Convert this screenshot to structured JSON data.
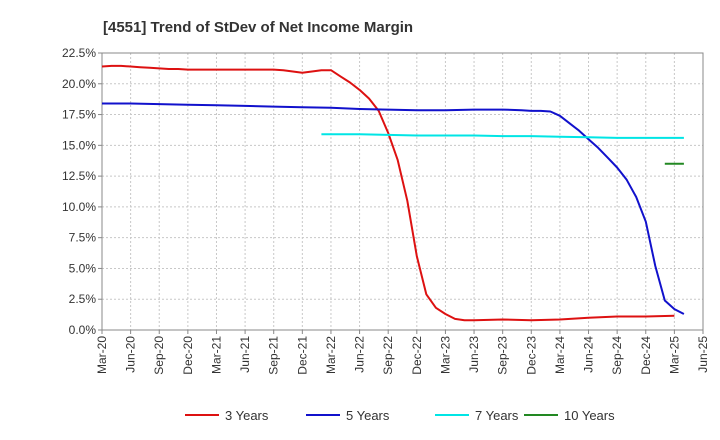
{
  "chart_data": {
    "type": "line",
    "title": "[4551]  Trend of StDev of Net Income Margin",
    "xlabel": "",
    "ylabel": "",
    "ylim": [
      0,
      22.5
    ],
    "yticks": [
      "0.0%",
      "2.5%",
      "5.0%",
      "7.5%",
      "10.0%",
      "12.5%",
      "15.0%",
      "17.5%",
      "20.0%",
      "22.5%"
    ],
    "ytick_values": [
      0,
      2.5,
      5,
      7.5,
      10,
      12.5,
      15,
      17.5,
      20,
      22.5
    ],
    "xticks": [
      "Mar-20",
      "Jun-20",
      "Sep-20",
      "Dec-20",
      "Mar-21",
      "Jun-21",
      "Sep-21",
      "Dec-21",
      "Mar-22",
      "Jun-22",
      "Sep-22",
      "Dec-22",
      "Mar-23",
      "Jun-23",
      "Sep-23",
      "Dec-23",
      "Mar-24",
      "Jun-24",
      "Sep-24",
      "Dec-24",
      "Mar-25",
      "Jun-25"
    ],
    "grid": true,
    "legend_position": "bottom",
    "series": [
      {
        "name": "3 Years",
        "color": "#dd1111",
        "points": [
          [
            "Mar-20",
            21.4
          ],
          [
            "Apr-20",
            21.45
          ],
          [
            "May-20",
            21.45
          ],
          [
            "Jun-20",
            21.4
          ],
          [
            "Jul-20",
            21.35
          ],
          [
            "Aug-20",
            21.3
          ],
          [
            "Sep-20",
            21.25
          ],
          [
            "Oct-20",
            21.2
          ],
          [
            "Nov-20",
            21.2
          ],
          [
            "Dec-20",
            21.15
          ],
          [
            "Mar-21",
            21.15
          ],
          [
            "Jun-21",
            21.15
          ],
          [
            "Sep-21",
            21.15
          ],
          [
            "Oct-21",
            21.1
          ],
          [
            "Nov-21",
            21.0
          ],
          [
            "Dec-21",
            20.9
          ],
          [
            "Jan-22",
            21.0
          ],
          [
            "Feb-22",
            21.1
          ],
          [
            "Mar-22",
            21.1
          ],
          [
            "Apr-22",
            20.6
          ],
          [
            "May-22",
            20.1
          ],
          [
            "Jun-22",
            19.5
          ],
          [
            "Jul-22",
            18.8
          ],
          [
            "Aug-22",
            17.8
          ],
          [
            "Sep-22",
            16.0
          ],
          [
            "Oct-22",
            13.8
          ],
          [
            "Nov-22",
            10.5
          ],
          [
            "Dec-22",
            6.0
          ],
          [
            "Jan-23",
            2.9
          ],
          [
            "Feb-23",
            1.8
          ],
          [
            "Mar-23",
            1.3
          ],
          [
            "Apr-23",
            0.9
          ],
          [
            "May-23",
            0.8
          ],
          [
            "Jun-23",
            0.8
          ],
          [
            "Sep-23",
            0.85
          ],
          [
            "Dec-23",
            0.8
          ],
          [
            "Mar-24",
            0.85
          ],
          [
            "Jun-24",
            1.0
          ],
          [
            "Sep-24",
            1.1
          ],
          [
            "Dec-24",
            1.1
          ],
          [
            "Mar-25",
            1.15
          ]
        ]
      },
      {
        "name": "5 Years",
        "color": "#1111cc",
        "points": [
          [
            "Mar-20",
            18.4
          ],
          [
            "Jun-20",
            18.4
          ],
          [
            "Sep-20",
            18.35
          ],
          [
            "Dec-20",
            18.3
          ],
          [
            "Mar-21",
            18.25
          ],
          [
            "Jun-21",
            18.2
          ],
          [
            "Sep-21",
            18.15
          ],
          [
            "Dec-21",
            18.1
          ],
          [
            "Mar-22",
            18.05
          ],
          [
            "Jun-22",
            17.95
          ],
          [
            "Sep-22",
            17.9
          ],
          [
            "Dec-22",
            17.85
          ],
          [
            "Mar-23",
            17.85
          ],
          [
            "Jun-23",
            17.9
          ],
          [
            "Sep-23",
            17.9
          ],
          [
            "Nov-23",
            17.85
          ],
          [
            "Dec-23",
            17.8
          ],
          [
            "Jan-24",
            17.8
          ],
          [
            "Feb-24",
            17.75
          ],
          [
            "Mar-24",
            17.4
          ],
          [
            "Apr-24",
            16.8
          ],
          [
            "May-24",
            16.2
          ],
          [
            "Jun-24",
            15.5
          ],
          [
            "Jul-24",
            14.8
          ],
          [
            "Aug-24",
            14.0
          ],
          [
            "Sep-24",
            13.2
          ],
          [
            "Oct-24",
            12.2
          ],
          [
            "Nov-24",
            10.8
          ],
          [
            "Dec-24",
            8.8
          ],
          [
            "Jan-25",
            5.2
          ],
          [
            "Feb-25",
            2.4
          ],
          [
            "Mar-25",
            1.7
          ],
          [
            "Apr-25",
            1.3
          ]
        ]
      },
      {
        "name": "7 Years",
        "color": "#00e5e5",
        "points": [
          [
            "Feb-22",
            15.9
          ],
          [
            "Jun-22",
            15.9
          ],
          [
            "Sep-22",
            15.85
          ],
          [
            "Dec-22",
            15.8
          ],
          [
            "Mar-23",
            15.8
          ],
          [
            "Jun-23",
            15.8
          ],
          [
            "Sep-23",
            15.75
          ],
          [
            "Dec-23",
            15.75
          ],
          [
            "Mar-24",
            15.7
          ],
          [
            "Jun-24",
            15.65
          ],
          [
            "Sep-24",
            15.6
          ],
          [
            "Dec-24",
            15.6
          ],
          [
            "Apr-25",
            15.6
          ]
        ]
      },
      {
        "name": "10 Years",
        "color": "#228822",
        "points": [
          [
            "Feb-25",
            13.5
          ],
          [
            "Apr-25",
            13.5
          ]
        ]
      }
    ]
  }
}
